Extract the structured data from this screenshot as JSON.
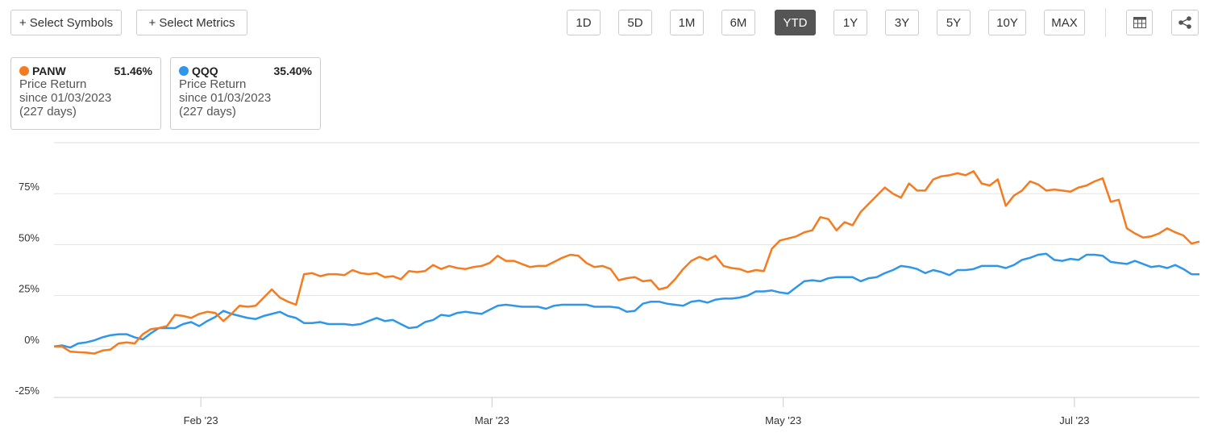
{
  "toolbar": {
    "select_symbols": "+ Select Symbols",
    "select_metrics": "+ Select Metrics",
    "ranges": [
      "1D",
      "5D",
      "1M",
      "6M",
      "YTD",
      "1Y",
      "3Y",
      "5Y",
      "10Y",
      "MAX"
    ],
    "active_range": "YTD"
  },
  "cards": [
    {
      "symbol": "PANW",
      "return": "51.46%",
      "metric": "Price Return",
      "since": "since 01/03/2023",
      "days": "(227 days)"
    },
    {
      "symbol": "QQQ",
      "return": "35.40%",
      "metric": "Price Return",
      "since": "since 01/03/2023",
      "days": "(227 days)"
    }
  ],
  "chart_data": {
    "type": "line",
    "xlim": [
      0,
      142
    ],
    "xticks": [
      {
        "value": 18.2,
        "label": "Feb '23"
      },
      {
        "value": 54.3,
        "label": "Mar '23"
      },
      {
        "value": 90.4,
        "label": "May '23"
      },
      {
        "value": 126.5,
        "label": "Jul '23"
      }
    ],
    "ylim": [
      -25,
      100
    ],
    "yticks": [
      {
        "value": -25,
        "label": "-25%"
      },
      {
        "value": 0,
        "label": "0%"
      },
      {
        "value": 25,
        "label": "25%"
      },
      {
        "value": 50,
        "label": "50%"
      },
      {
        "value": 75,
        "label": "75%"
      }
    ],
    "grid": true,
    "series": [
      {
        "name": "PANW",
        "color": "#f47b20",
        "values": [
          0,
          0,
          -2.5,
          -2.8,
          -3,
          -3.5,
          -2,
          -1.5,
          1.5,
          2,
          1.5,
          6,
          8.5,
          9,
          10,
          15.5,
          15,
          14,
          16,
          17,
          16.5,
          12.5,
          16,
          20,
          19.5,
          20,
          24,
          28,
          24,
          22,
          20.5,
          35.5,
          36,
          34.5,
          35.5,
          35.5,
          35,
          37.5,
          36,
          35.5,
          36,
          34,
          34.5,
          33,
          37,
          36.5,
          37,
          40,
          38,
          39.5,
          38.5,
          38,
          39,
          39.5,
          41,
          44.5,
          42,
          42,
          40.5,
          39,
          39.5,
          39.5,
          41.5,
          43.5,
          45,
          44.5,
          41,
          39,
          39.5,
          38,
          32.5,
          33.5,
          34,
          32,
          32.5,
          28,
          29,
          33,
          38,
          42,
          44,
          42.5,
          44.5,
          39.5,
          38.5,
          38,
          36.5,
          37.5,
          37,
          48,
          52,
          53,
          54,
          56,
          57,
          63.5,
          62.5,
          57,
          61,
          59.5,
          66,
          70,
          74,
          78,
          75,
          73,
          80,
          76.5,
          76.5,
          82,
          83.5,
          84,
          85,
          84,
          86,
          80,
          79,
          82,
          69,
          74,
          76.5,
          81,
          79.5,
          76.5,
          77,
          76.5,
          76,
          78,
          79,
          81,
          82.5,
          71,
          72,
          58,
          55.5,
          53.5,
          54,
          55.5,
          58,
          56,
          54.5,
          50.5,
          51.46
        ]
      },
      {
        "name": "QQQ",
        "color": "#2f96e8",
        "values": [
          0,
          0.5,
          -0.5,
          1.5,
          2,
          3,
          4.5,
          5.5,
          6,
          6,
          4.5,
          3.5,
          6.5,
          9,
          9,
          9,
          11,
          12,
          10,
          12.5,
          14.5,
          17.5,
          16,
          15,
          14,
          13.5,
          15,
          16,
          17,
          15,
          14,
          11.5,
          11.5,
          12,
          11,
          11,
          11,
          10.5,
          11,
          12.5,
          14,
          12.5,
          13,
          11,
          9,
          9.5,
          12,
          13,
          15.5,
          15,
          16.5,
          17,
          16.5,
          16,
          18,
          20,
          20.5,
          20,
          19.5,
          19.5,
          19.5,
          18.5,
          20,
          20.5,
          20.5,
          20.5,
          20.5,
          19.5,
          19.5,
          19.5,
          19,
          17,
          17.5,
          21,
          22,
          22,
          21,
          20.5,
          20,
          22,
          22.5,
          21.5,
          23,
          23.5,
          23.5,
          24,
          25,
          27,
          27,
          27.5,
          26.5,
          26,
          29,
          32,
          32.5,
          32,
          33.5,
          34,
          34,
          34,
          32,
          33.5,
          34,
          36,
          37.5,
          39.5,
          39,
          38,
          36,
          37.5,
          36.5,
          35,
          37.5,
          37.5,
          38,
          39.5,
          39.5,
          39.5,
          38.5,
          40,
          42.5,
          43.5,
          45,
          45.5,
          42.5,
          42,
          43,
          42.5,
          45,
          45,
          44.5,
          41.5,
          41,
          40.5,
          42,
          40.5,
          39,
          39.5,
          38.5,
          40,
          38,
          35.5,
          35.4
        ]
      }
    ]
  }
}
